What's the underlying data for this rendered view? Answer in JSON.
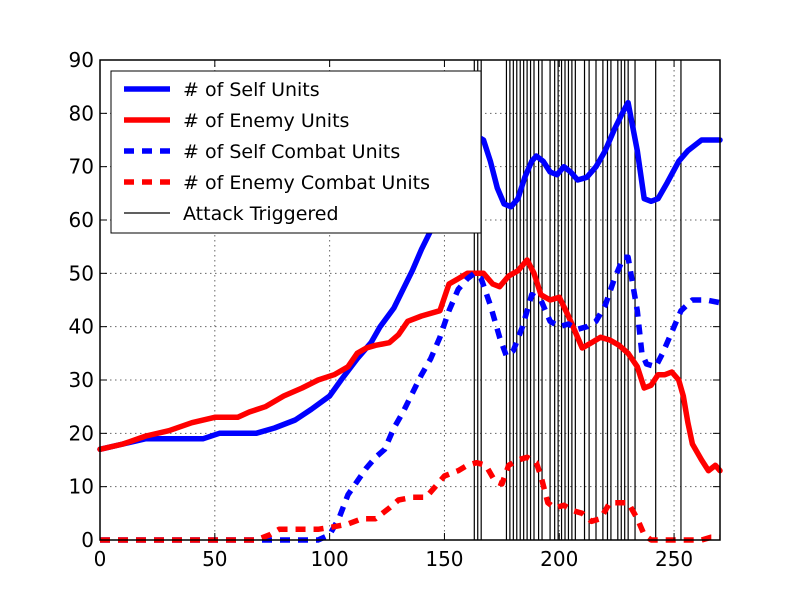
{
  "chart_data": {
    "type": "line",
    "title": "",
    "xlabel": "",
    "ylabel": "",
    "xlim": [
      0,
      270
    ],
    "ylim": [
      0,
      90
    ],
    "x_ticks": [
      0,
      50,
      100,
      150,
      200,
      250
    ],
    "y_ticks": [
      0,
      10,
      20,
      30,
      40,
      50,
      60,
      70,
      80,
      90
    ],
    "grid": true,
    "legend_position": "upper-left",
    "series": [
      {
        "name": "# of Self Units",
        "color": "#0000ff",
        "style": "solid",
        "points": [
          [
            0,
            17
          ],
          [
            10,
            18
          ],
          [
            20,
            19
          ],
          [
            30,
            19
          ],
          [
            45,
            19
          ],
          [
            52,
            20
          ],
          [
            60,
            20
          ],
          [
            68,
            20
          ],
          [
            76,
            21
          ],
          [
            85,
            22.5
          ],
          [
            92,
            24.5
          ],
          [
            100,
            27
          ],
          [
            105,
            30
          ],
          [
            112,
            34
          ],
          [
            118,
            37
          ],
          [
            122,
            40
          ],
          [
            128,
            43.5
          ],
          [
            132,
            47
          ],
          [
            136,
            50.5
          ],
          [
            140,
            54.5
          ],
          [
            144,
            58
          ],
          [
            148,
            62
          ],
          [
            152,
            66
          ],
          [
            156,
            70
          ],
          [
            160,
            74
          ],
          [
            163,
            76
          ],
          [
            167,
            75
          ],
          [
            170,
            71
          ],
          [
            173,
            66
          ],
          [
            176,
            63
          ],
          [
            179,
            62.5
          ],
          [
            182,
            64
          ],
          [
            185,
            68
          ],
          [
            188,
            71
          ],
          [
            190,
            72
          ],
          [
            193,
            71
          ],
          [
            196,
            69
          ],
          [
            199,
            68.5
          ],
          [
            202,
            70
          ],
          [
            205,
            69
          ],
          [
            208,
            67.5
          ],
          [
            212,
            68
          ],
          [
            216,
            70
          ],
          [
            220,
            73
          ],
          [
            224,
            77
          ],
          [
            228,
            80.5
          ],
          [
            230,
            82
          ],
          [
            234,
            73
          ],
          [
            237,
            64
          ],
          [
            240,
            63.5
          ],
          [
            243,
            64
          ],
          [
            247,
            67
          ],
          [
            252,
            71
          ],
          [
            256,
            73
          ],
          [
            262,
            75
          ],
          [
            266,
            75
          ],
          [
            270,
            75
          ]
        ]
      },
      {
        "name": "# of Enemy Units",
        "color": "#ff0000",
        "style": "solid",
        "points": [
          [
            0,
            17
          ],
          [
            10,
            18
          ],
          [
            20,
            19.5
          ],
          [
            30,
            20.5
          ],
          [
            40,
            22
          ],
          [
            50,
            23
          ],
          [
            60,
            23
          ],
          [
            65,
            24
          ],
          [
            72,
            25
          ],
          [
            80,
            27
          ],
          [
            88,
            28.5
          ],
          [
            95,
            30
          ],
          [
            102,
            31
          ],
          [
            108,
            32.5
          ],
          [
            112,
            35
          ],
          [
            116,
            36
          ],
          [
            120,
            36.5
          ],
          [
            126,
            37
          ],
          [
            130,
            38.5
          ],
          [
            134,
            41
          ],
          [
            140,
            42
          ],
          [
            148,
            43
          ],
          [
            152,
            48
          ],
          [
            156,
            49
          ],
          [
            160,
            50
          ],
          [
            163,
            50
          ],
          [
            167,
            50
          ],
          [
            171,
            48
          ],
          [
            174,
            47.5
          ],
          [
            178,
            49.5
          ],
          [
            182,
            50.5
          ],
          [
            186,
            52.5
          ],
          [
            189,
            50
          ],
          [
            192,
            46
          ],
          [
            196,
            45
          ],
          [
            200,
            45.5
          ],
          [
            204,
            42
          ],
          [
            207,
            39
          ],
          [
            210,
            36
          ],
          [
            214,
            37
          ],
          [
            218,
            38
          ],
          [
            222,
            37.5
          ],
          [
            226,
            36.5
          ],
          [
            230,
            35
          ],
          [
            234,
            32.5
          ],
          [
            237,
            28.5
          ],
          [
            240,
            29
          ],
          [
            243,
            31
          ],
          [
            246,
            31
          ],
          [
            249,
            31.5
          ],
          [
            252,
            30
          ],
          [
            254,
            27
          ],
          [
            256,
            22
          ],
          [
            258,
            18
          ],
          [
            262,
            15
          ],
          [
            265,
            13
          ],
          [
            268,
            14
          ],
          [
            270,
            13
          ]
        ]
      },
      {
        "name": "# of Self Combat Units",
        "color": "#0000ff",
        "style": "dashed",
        "points": [
          [
            0,
            0
          ],
          [
            90,
            0
          ],
          [
            95,
            0
          ],
          [
            100,
            1
          ],
          [
            104,
            4
          ],
          [
            108,
            8.5
          ],
          [
            112,
            11
          ],
          [
            116,
            13.5
          ],
          [
            120,
            15.5
          ],
          [
            124,
            17
          ],
          [
            128,
            21
          ],
          [
            132,
            24
          ],
          [
            136,
            27.5
          ],
          [
            140,
            31
          ],
          [
            144,
            34
          ],
          [
            148,
            38
          ],
          [
            152,
            43
          ],
          [
            156,
            47
          ],
          [
            160,
            49
          ],
          [
            163,
            50
          ],
          [
            166,
            49
          ],
          [
            170,
            44
          ],
          [
            174,
            38
          ],
          [
            177,
            34.5
          ],
          [
            180,
            35.5
          ],
          [
            184,
            40
          ],
          [
            188,
            46
          ],
          [
            192,
            45
          ],
          [
            196,
            41
          ],
          [
            200,
            40
          ],
          [
            204,
            40.5
          ],
          [
            208,
            39.5
          ],
          [
            212,
            40
          ],
          [
            216,
            41
          ],
          [
            220,
            44
          ],
          [
            224,
            49
          ],
          [
            228,
            53
          ],
          [
            230,
            53
          ],
          [
            234,
            43
          ],
          [
            236,
            35
          ],
          [
            238,
            33
          ],
          [
            242,
            32.5
          ],
          [
            245,
            35
          ],
          [
            249,
            39
          ],
          [
            253,
            43
          ],
          [
            258,
            45
          ],
          [
            264,
            45
          ],
          [
            270,
            44.5
          ]
        ]
      },
      {
        "name": "# of Enemy Combat Units",
        "color": "#ff0000",
        "style": "dashed",
        "points": [
          [
            0,
            0
          ],
          [
            68,
            0
          ],
          [
            74,
            1
          ],
          [
            78,
            2
          ],
          [
            86,
            2
          ],
          [
            95,
            2
          ],
          [
            102,
            2.5
          ],
          [
            108,
            3
          ],
          [
            114,
            4
          ],
          [
            120,
            4
          ],
          [
            126,
            6
          ],
          [
            130,
            7.5
          ],
          [
            136,
            8
          ],
          [
            142,
            8
          ],
          [
            146,
            10
          ],
          [
            150,
            12
          ],
          [
            156,
            13
          ],
          [
            160,
            14
          ],
          [
            164,
            14.5
          ],
          [
            168,
            14
          ],
          [
            172,
            11
          ],
          [
            175,
            10.5
          ],
          [
            178,
            14
          ],
          [
            182,
            15
          ],
          [
            186,
            15.5
          ],
          [
            190,
            14.5
          ],
          [
            192,
            12
          ],
          [
            195,
            7
          ],
          [
            198,
            6
          ],
          [
            202,
            6.5
          ],
          [
            206,
            5.5
          ],
          [
            210,
            5
          ],
          [
            214,
            3.5
          ],
          [
            218,
            4
          ],
          [
            222,
            7
          ],
          [
            226,
            7
          ],
          [
            230,
            7
          ],
          [
            234,
            4
          ],
          [
            237,
            1
          ],
          [
            240,
            0
          ],
          [
            255,
            0
          ],
          [
            262,
            0
          ],
          [
            266,
            0.5
          ],
          [
            270,
            0.5
          ]
        ]
      }
    ],
    "attack_lines": {
      "name": "Attack Triggered",
      "color": "#000000",
      "x": [
        163,
        164.5,
        166,
        177,
        178.5,
        180,
        181.5,
        183,
        184.5,
        186,
        187.5,
        189,
        191,
        192.5,
        196,
        198,
        199.5,
        201,
        202.5,
        204,
        205.5,
        207,
        211,
        213,
        216,
        219,
        221,
        222.5,
        225.5,
        227,
        228.5,
        230,
        233,
        242,
        253
      ]
    }
  }
}
